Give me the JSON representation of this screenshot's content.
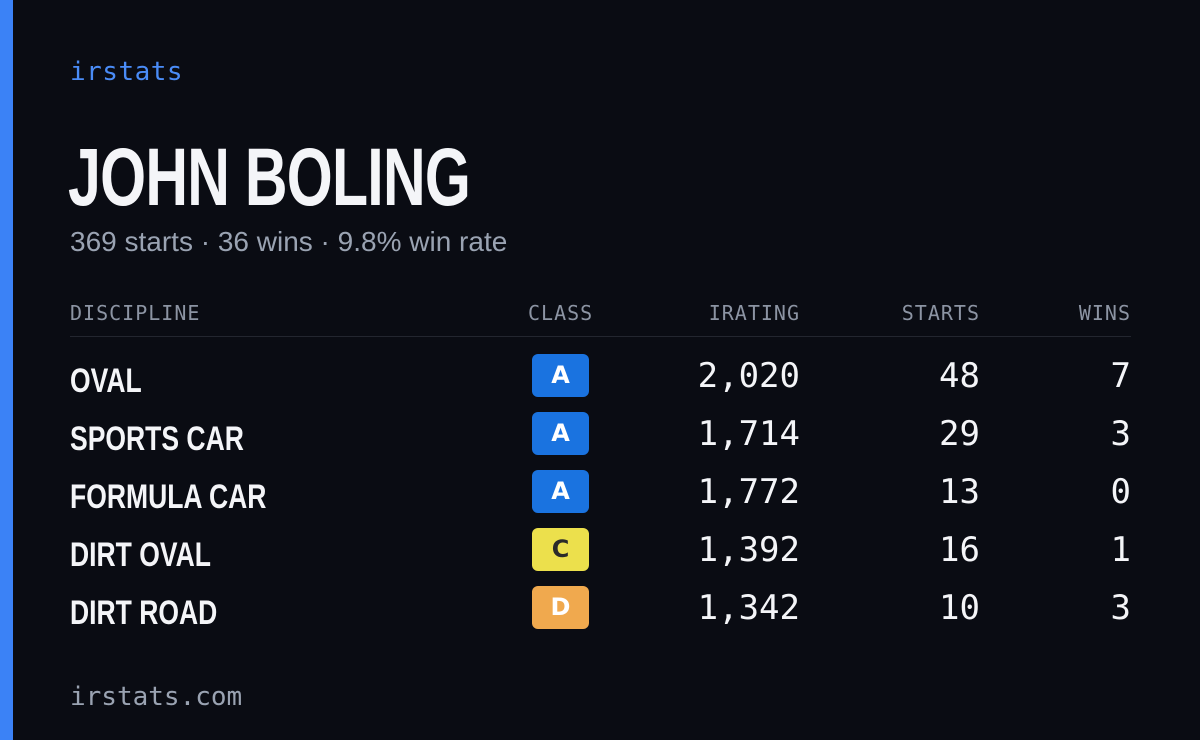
{
  "brand": "irstats",
  "driver": {
    "name": "JOHN BOLING",
    "summary": "369 starts · 36 wins · 9.8% win rate"
  },
  "table": {
    "headers": {
      "discipline": "DISCIPLINE",
      "class": "CLASS",
      "irating": "IRATING",
      "starts": "STARTS",
      "wins": "WINS"
    },
    "rows": [
      {
        "discipline": "OVAL",
        "class": "A",
        "class_color": "#1a73e0",
        "class_text_color": "#ffffff",
        "irating": "2,020",
        "starts": "48",
        "wins": "7"
      },
      {
        "discipline": "SPORTS CAR",
        "class": "A",
        "class_color": "#1a73e0",
        "class_text_color": "#ffffff",
        "irating": "1,714",
        "starts": "29",
        "wins": "3"
      },
      {
        "discipline": "FORMULA CAR",
        "class": "A",
        "class_color": "#1a73e0",
        "class_text_color": "#ffffff",
        "irating": "1,772",
        "starts": "13",
        "wins": "0"
      },
      {
        "discipline": "DIRT OVAL",
        "class": "C",
        "class_color": "#ece04c",
        "class_text_color": "#2a2a2a",
        "irating": "1,392",
        "starts": "16",
        "wins": "1"
      },
      {
        "discipline": "DIRT ROAD",
        "class": "D",
        "class_color": "#f0a94e",
        "class_text_color": "#ffffff",
        "irating": "1,342",
        "starts": "10",
        "wins": "3"
      }
    ]
  },
  "footer": "irstats.com",
  "colors": {
    "background": "#0a0c13",
    "accent": "#3b82f6"
  }
}
